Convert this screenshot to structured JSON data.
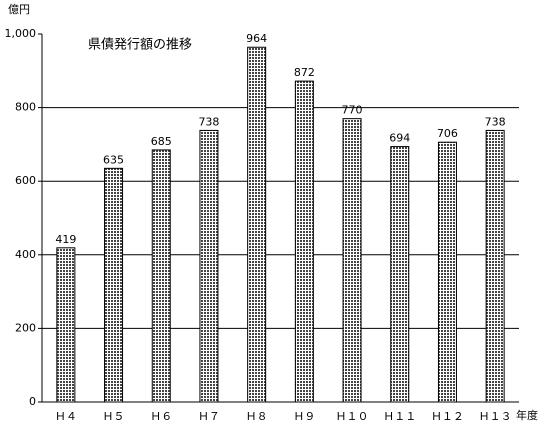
{
  "chart_data": {
    "type": "bar",
    "title": "県債発行額の推移",
    "y_label": "億円",
    "x_label": "年度",
    "categories": [
      "Ｈ４",
      "Ｈ５",
      "Ｈ６",
      "Ｈ７",
      "Ｈ８",
      "Ｈ９",
      "Ｈ１０",
      "Ｈ１１",
      "Ｈ１２",
      "Ｈ１３"
    ],
    "values": [
      419,
      635,
      685,
      738,
      964,
      872,
      770,
      694,
      706,
      738
    ],
    "color": "#444444",
    "ylim": [
      0,
      1000
    ],
    "yticks": [
      0,
      200,
      400,
      600,
      800,
      {
        "value": 1000,
        "label": "1,000"
      }
    ],
    "grid": true
  }
}
